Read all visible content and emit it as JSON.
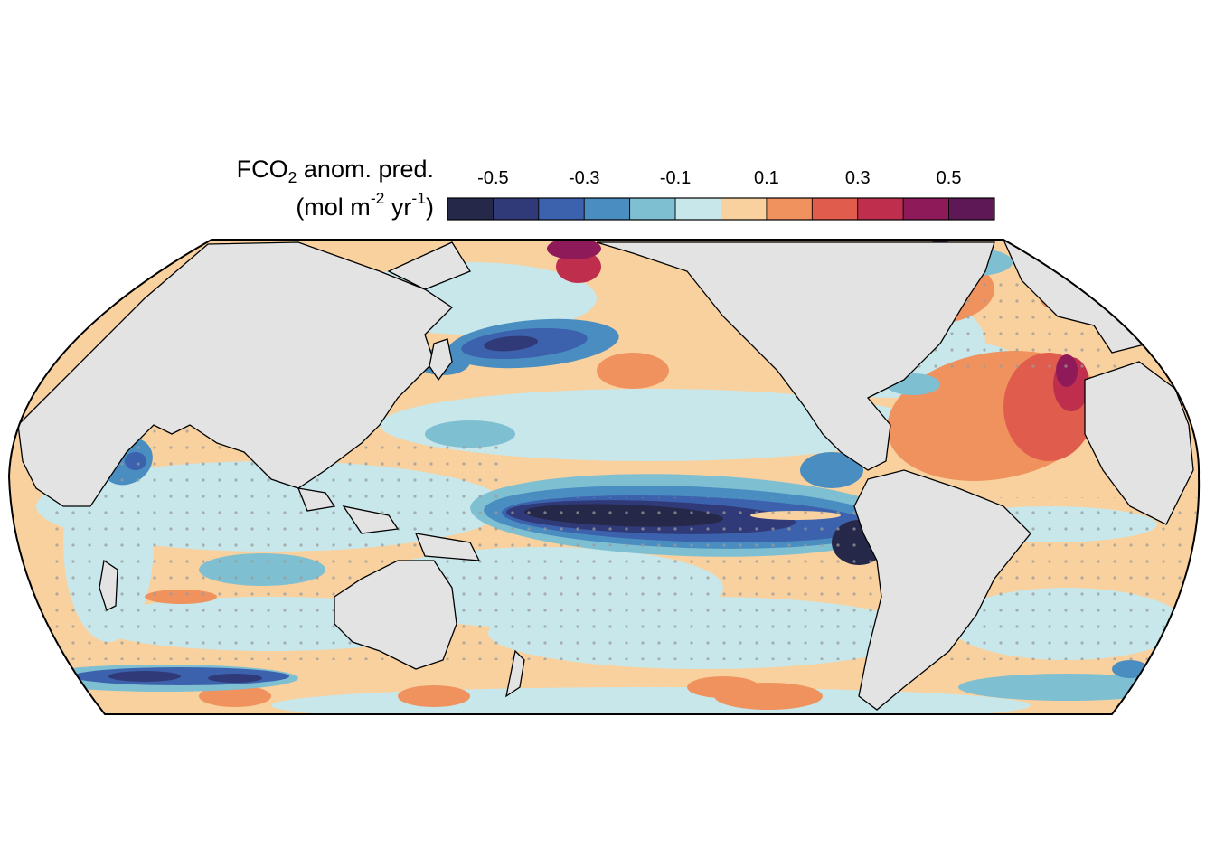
{
  "legend": {
    "title": {
      "line1_prefix": "FCO",
      "line1_sub": "2",
      "line1_suffix": " anom. pred.",
      "line2_prefix": "(mol m",
      "line2_sup1": "-2",
      "line2_mid": " yr",
      "line2_sup2": "-1",
      "line2_suffix": ")"
    },
    "tick_labels": [
      "-0.5",
      "-0.3",
      "-0.1",
      "0.1",
      "0.3",
      "0.5"
    ],
    "tick_values": [
      -0.5,
      -0.3,
      -0.1,
      0.1,
      0.3,
      0.5
    ],
    "bins": [
      -0.6,
      -0.5,
      -0.4,
      -0.3,
      -0.2,
      -0.1,
      0,
      0.1,
      0.2,
      0.3,
      0.4,
      0.5,
      0.6
    ],
    "colors": [
      "#26284a",
      "#313a79",
      "#3c62ad",
      "#4a8ec1",
      "#7fbfd2",
      "#c7e7ea",
      "#f9d19e",
      "#f0925e",
      "#e05d4e",
      "#bf2f4d",
      "#8f1a5a",
      "#5f1856"
    ]
  },
  "map": {
    "projection": "Eckert-like pseudocylindrical, Pacific-centered",
    "land_color": "#e3e3e3",
    "coast_color": "#000000",
    "stipple_color": "#9a9a9a",
    "background_class": 0.05
  }
}
